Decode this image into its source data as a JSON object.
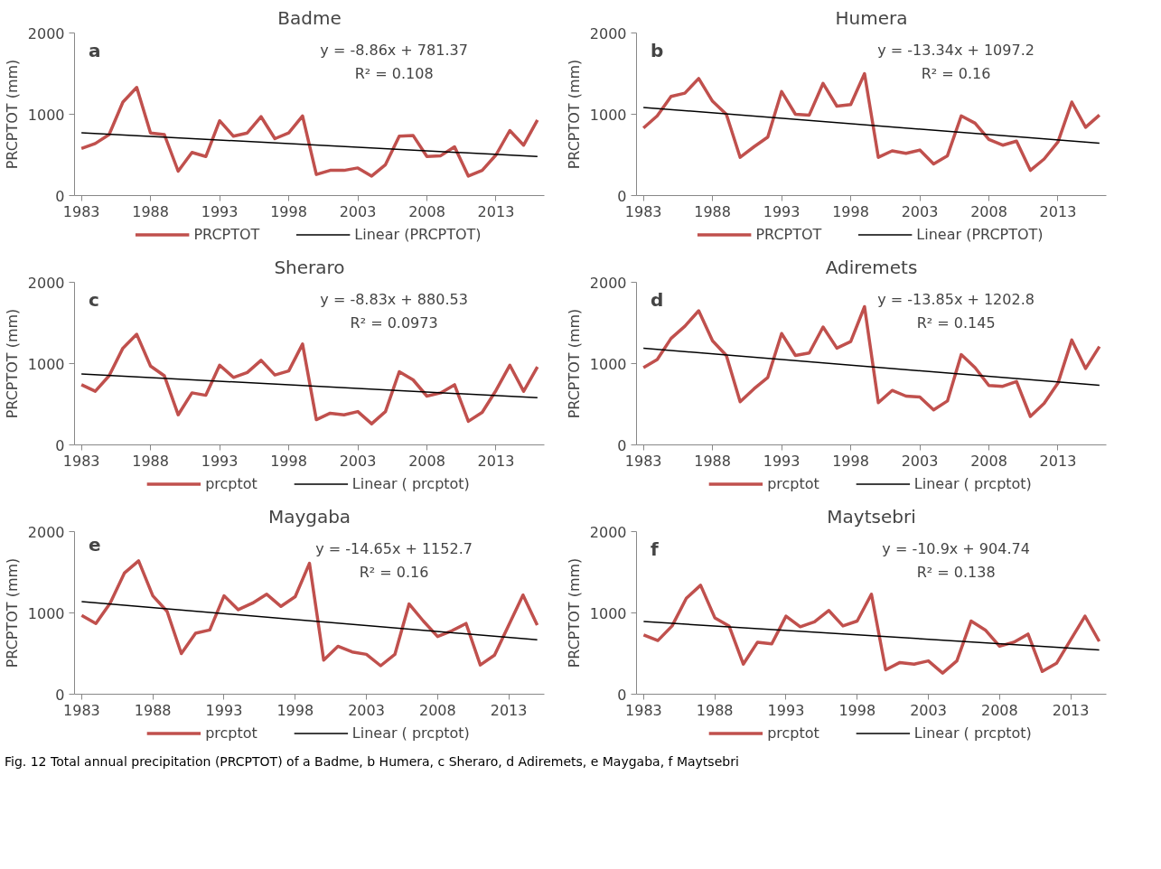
{
  "chart_data": [
    {
      "type": "line",
      "title": "Badme",
      "ylabel": "PRCPTOT (mm)",
      "x": [
        1983,
        1984,
        1985,
        1986,
        1987,
        1988,
        1989,
        1990,
        1991,
        1992,
        1993,
        1994,
        1995,
        1996,
        1997,
        1998,
        1999,
        2000,
        2001,
        2002,
        2003,
        2004,
        2005,
        2006,
        2007,
        2008,
        2009,
        2010,
        2011,
        2012,
        2013,
        2014,
        2015,
        2016
      ],
      "xlim": [
        1982.5,
        2016.5
      ],
      "xticks": [
        1983,
        1988,
        1993,
        1998,
        2003,
        2008,
        2013
      ],
      "ylim": [
        0,
        2000
      ],
      "yticks": [
        0,
        1000,
        2000
      ],
      "grid": false,
      "legend": "bottom",
      "series": [
        {
          "name": "PRCPTOT",
          "color": "#c0504d",
          "values": [
            580,
            640,
            750,
            1150,
            1330,
            770,
            750,
            300,
            530,
            480,
            920,
            730,
            770,
            970,
            700,
            770,
            980,
            260,
            310,
            310,
            340,
            240,
            380,
            730,
            740,
            480,
            490,
            600,
            240,
            310,
            500,
            800,
            620,
            930
          ]
        },
        {
          "name": "Linear (PRCPTOT)",
          "color": "#000000",
          "x": [
            1983,
            2016
          ],
          "values": [
            772,
            480
          ]
        }
      ],
      "annotations": [
        "a",
        "y = -8.86x + 781.37",
        "R² = 0.108"
      ]
    },
    {
      "type": "line",
      "title": "Humera",
      "ylabel": "PRCPTOT (mm)",
      "x": [
        1983,
        1984,
        1985,
        1986,
        1987,
        1988,
        1989,
        1990,
        1991,
        1992,
        1993,
        1994,
        1995,
        1996,
        1997,
        1998,
        1999,
        2000,
        2001,
        2002,
        2003,
        2004,
        2005,
        2006,
        2007,
        2008,
        2009,
        2010,
        2011,
        2012,
        2013,
        2014,
        2015,
        2016
      ],
      "xlim": [
        1982.5,
        2016.5
      ],
      "xticks": [
        1983,
        1988,
        1993,
        1998,
        2003,
        2008,
        2013
      ],
      "ylim": [
        0,
        2000
      ],
      "yticks": [
        0,
        1000,
        2000
      ],
      "grid": false,
      "legend": "bottom",
      "series": [
        {
          "name": "PRCPTOT",
          "color": "#c0504d",
          "values": [
            830,
            980,
            1220,
            1260,
            1440,
            1160,
            1000,
            470,
            600,
            720,
            1280,
            1000,
            990,
            1380,
            1100,
            1120,
            1500,
            470,
            550,
            520,
            560,
            390,
            490,
            980,
            890,
            690,
            620,
            670,
            310,
            450,
            660,
            1150,
            840,
            990
          ]
        },
        {
          "name": "Linear (PRCPTOT)",
          "color": "#000000",
          "x": [
            1983,
            2016
          ],
          "values": [
            1084,
            644
          ]
        }
      ],
      "annotations": [
        "b",
        "y = -13.34x + 1097.2",
        "R² = 0.16"
      ]
    },
    {
      "type": "line",
      "title": "Sheraro",
      "ylabel": "PRCPTOT (mm)",
      "x": [
        1983,
        1984,
        1985,
        1986,
        1987,
        1988,
        1989,
        1990,
        1991,
        1992,
        1993,
        1994,
        1995,
        1996,
        1997,
        1998,
        1999,
        2000,
        2001,
        2002,
        2003,
        2004,
        2005,
        2006,
        2007,
        2008,
        2009,
        2010,
        2011,
        2012,
        2013,
        2014,
        2015,
        2016
      ],
      "xlim": [
        1982.5,
        2016.5
      ],
      "xticks": [
        1983,
        1988,
        1993,
        1998,
        2003,
        2008,
        2013
      ],
      "ylim": [
        0,
        2000
      ],
      "yticks": [
        0,
        1000,
        2000
      ],
      "grid": false,
      "legend": "bottom",
      "series": [
        {
          "name": "prcptot",
          "color": "#c0504d",
          "values": [
            740,
            660,
            850,
            1190,
            1360,
            970,
            850,
            370,
            640,
            610,
            980,
            830,
            890,
            1040,
            860,
            910,
            1240,
            310,
            390,
            370,
            410,
            260,
            410,
            900,
            800,
            600,
            640,
            740,
            290,
            400,
            670,
            980,
            660,
            960
          ]
        },
        {
          "name": "Linear ( prcptot)",
          "color": "#000000",
          "x": [
            1983,
            2016
          ],
          "values": [
            872,
            580
          ]
        }
      ],
      "annotations": [
        "c",
        "y = -8.83x + 880.53",
        "R² = 0.0973"
      ]
    },
    {
      "type": "line",
      "title": "Adiremets",
      "ylabel": "PRCPTOT (mm)",
      "x": [
        1983,
        1984,
        1985,
        1986,
        1987,
        1988,
        1989,
        1990,
        1991,
        1992,
        1993,
        1994,
        1995,
        1996,
        1997,
        1998,
        1999,
        2000,
        2001,
        2002,
        2003,
        2004,
        2005,
        2006,
        2007,
        2008,
        2009,
        2010,
        2011,
        2012,
        2013,
        2014,
        2015,
        2016
      ],
      "xlim": [
        1982.5,
        2016.5
      ],
      "xticks": [
        1983,
        1988,
        1993,
        1998,
        2003,
        2008,
        2013
      ],
      "ylim": [
        0,
        2000
      ],
      "yticks": [
        0,
        1000,
        2000
      ],
      "grid": false,
      "legend": "bottom",
      "series": [
        {
          "name": "prcptot",
          "color": "#c0504d",
          "values": [
            950,
            1050,
            1310,
            1460,
            1650,
            1280,
            1100,
            530,
            690,
            830,
            1370,
            1100,
            1130,
            1450,
            1190,
            1270,
            1700,
            520,
            670,
            600,
            590,
            430,
            540,
            1110,
            950,
            730,
            720,
            780,
            350,
            510,
            760,
            1290,
            940,
            1210
          ]
        },
        {
          "name": "Linear ( prcptot)",
          "color": "#000000",
          "x": [
            1983,
            2016
          ],
          "values": [
            1189,
            732
          ]
        }
      ],
      "annotations": [
        "d",
        "y = -13.85x + 1202.8",
        "R² = 0.145"
      ]
    },
    {
      "type": "line",
      "title": "Maygaba",
      "ylabel": "PRCPTOT (mm)",
      "x": [
        1983,
        1984,
        1985,
        1986,
        1987,
        1988,
        1989,
        1990,
        1991,
        1992,
        1993,
        1994,
        1995,
        1996,
        1997,
        1998,
        1999,
        2000,
        2001,
        2002,
        2003,
        2004,
        2005,
        2006,
        2007,
        2008,
        2009,
        2010,
        2011,
        2012,
        2013,
        2014,
        2015
      ],
      "xlim": [
        1982.5,
        2015.5
      ],
      "xticks": [
        1983,
        1988,
        1993,
        1998,
        2003,
        2008,
        2013
      ],
      "ylim": [
        0,
        2000
      ],
      "yticks": [
        0,
        1000,
        2000
      ],
      "grid": false,
      "legend": "bottom",
      "series": [
        {
          "name": "prcptot",
          "color": "#c0504d",
          "values": [
            970,
            870,
            1120,
            1490,
            1640,
            1210,
            1020,
            500,
            750,
            790,
            1210,
            1040,
            1120,
            1230,
            1080,
            1200,
            1610,
            420,
            590,
            520,
            490,
            350,
            490,
            1110,
            900,
            710,
            780,
            870,
            360,
            480,
            850,
            1220,
            850
          ]
        },
        {
          "name": "Linear ( prcptot)",
          "color": "#000000",
          "x": [
            1983,
            2015
          ],
          "values": [
            1138,
            669
          ]
        }
      ],
      "annotations": [
        "e",
        "y = -14.65x + 1152.7",
        "R² = 0.16"
      ]
    },
    {
      "type": "line",
      "title": "Maytsebri",
      "ylabel": "PRCPTOT (mm)",
      "x": [
        1983,
        1984,
        1985,
        1986,
        1987,
        1988,
        1989,
        1990,
        1991,
        1992,
        1993,
        1994,
        1995,
        1996,
        1997,
        1998,
        1999,
        2000,
        2001,
        2002,
        2003,
        2004,
        2005,
        2006,
        2007,
        2008,
        2009,
        2010,
        2011,
        2012,
        2013,
        2014,
        2015
      ],
      "xlim": [
        1982.5,
        2015.5
      ],
      "xticks": [
        1983,
        1988,
        1993,
        1998,
        2003,
        2008,
        2013
      ],
      "ylim": [
        0,
        2000
      ],
      "yticks": [
        0,
        1000,
        2000
      ],
      "grid": false,
      "legend": "bottom",
      "series": [
        {
          "name": "prcptot",
          "color": "#c0504d",
          "values": [
            730,
            660,
            840,
            1180,
            1340,
            940,
            840,
            370,
            640,
            620,
            960,
            830,
            890,
            1030,
            840,
            900,
            1230,
            300,
            390,
            370,
            410,
            260,
            410,
            900,
            790,
            590,
            640,
            740,
            280,
            380,
            670,
            960,
            650
          ]
        },
        {
          "name": "Linear ( prcptot)",
          "color": "#000000",
          "x": [
            1983,
            2015
          ],
          "values": [
            894,
            545
          ]
        }
      ],
      "annotations": [
        "f",
        "y = -10.9x + 904.74",
        "R² = 0.138",
        "Fig. 12  Total annual precipitation (PRCPTOT) of a Badme, b Humera, c Sheraro, d Adiremets, e Maygaba, f Maytsebri"
      ]
    }
  ]
}
